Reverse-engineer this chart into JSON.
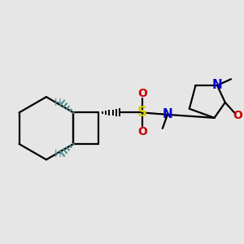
{
  "bg_color": "#e6e6e6",
  "atom_colors": {
    "C": "#000000",
    "S": "#cccc00",
    "N": "#0000cc",
    "O": "#cc0000",
    "H": "#4a8a8a"
  }
}
